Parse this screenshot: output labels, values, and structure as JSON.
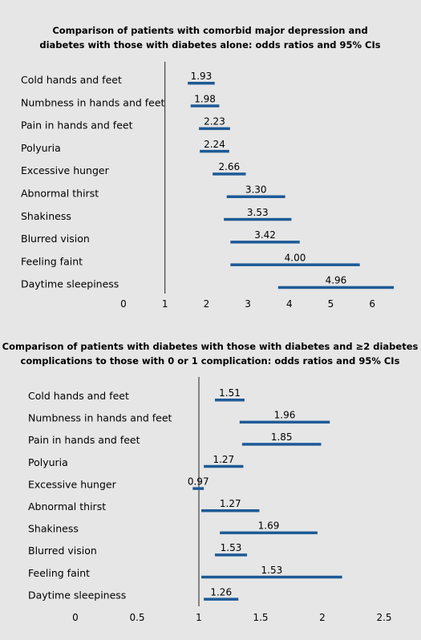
{
  "chart_data": [
    {
      "type": "forest",
      "title_lines": [
        "Comparison of patients with comorbid major depression and",
        "diabetes with those with diabetes alone: odds ratios and 95% CIs"
      ],
      "categories": [
        "Cold hands and feet",
        "Numbness in hands and feet",
        "Pain in hands and feet",
        "Polyuria",
        "Excessive hunger",
        "Abnormal thirst",
        "Shakiness",
        "Blurred vision",
        "Feeling faint",
        "Daytime sleepiness"
      ],
      "odds_ratios": [
        1.93,
        1.98,
        2.23,
        2.24,
        2.66,
        3.3,
        3.53,
        3.42,
        4.0,
        4.96
      ],
      "ci_low": [
        1.55,
        1.62,
        1.82,
        1.84,
        2.15,
        2.49,
        2.42,
        2.58,
        2.58,
        3.73
      ],
      "ci_high": [
        2.2,
        2.31,
        2.57,
        2.55,
        2.95,
        3.9,
        4.05,
        4.25,
        5.7,
        6.52
      ],
      "value_labels": [
        "1.93",
        "1.98",
        "2.23",
        "2.24",
        "2.66",
        "3.30",
        "3.53",
        "3.42",
        "4.00",
        "4.96"
      ],
      "x_ticks": [
        "0",
        "1",
        "2",
        "3",
        "4",
        "5",
        "6"
      ],
      "x_tick_values": [
        0,
        1,
        2,
        3,
        4,
        5,
        6
      ],
      "reference_line": 1,
      "xlim": [
        0,
        6.6
      ],
      "bar_color": "#1e5a96"
    },
    {
      "type": "forest",
      "title_lines": [
        "Comparison of patients with diabetes with those with diabetes and ≥2 diabetes",
        "complications to those with 0 or 1 complication: odds ratios and 95% CIs"
      ],
      "categories": [
        "Cold hands and feet",
        "Numbness in hands and feet",
        "Pain in hands and feet",
        "Polyuria",
        "Excessive hunger",
        "Abnormal thirst",
        "Shakiness",
        "Blurred vision",
        "Feeling faint",
        "Daytime sleepiness"
      ],
      "odds_ratios": [
        1.51,
        1.96,
        1.85,
        1.27,
        0.97,
        1.27,
        1.69,
        1.53,
        1.53,
        1.26
      ],
      "ci_low": [
        1.13,
        1.33,
        1.35,
        1.04,
        0.95,
        1.02,
        1.17,
        1.13,
        1.02,
        1.04
      ],
      "ci_high": [
        1.37,
        2.06,
        1.99,
        1.36,
        1.04,
        1.49,
        1.96,
        1.39,
        2.16,
        1.32
      ],
      "value_labels": [
        "1.51",
        "1.96",
        "1.85",
        "1.27",
        "0.97",
        "1.27",
        "1.69",
        "1.53",
        "1.53",
        "1.26"
      ],
      "x_ticks": [
        "0",
        "0.5",
        "1",
        "1.5",
        "2",
        "2.5"
      ],
      "x_tick_values": [
        0,
        0.5,
        1,
        1.5,
        2,
        2.5
      ],
      "reference_line": 1,
      "xlim": [
        0,
        2.5
      ],
      "bar_color": "#1e5a96"
    }
  ]
}
